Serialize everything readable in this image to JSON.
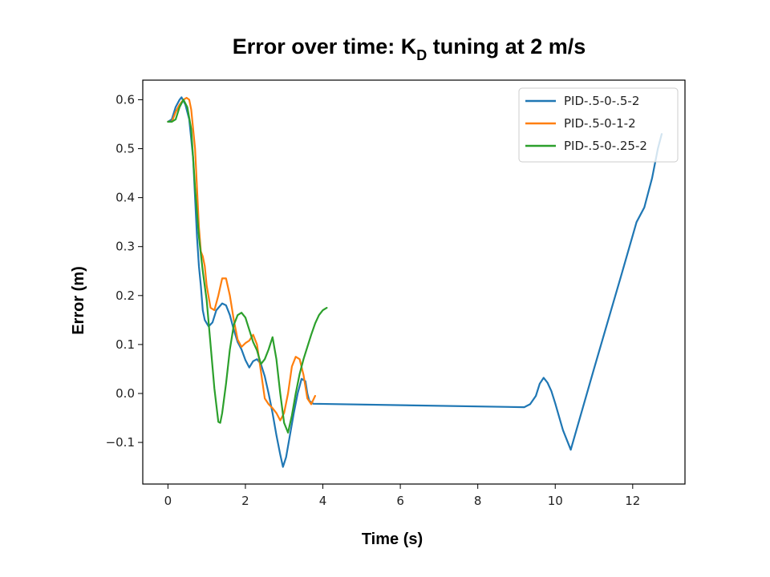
{
  "chart_data": {
    "type": "line",
    "title": {
      "prefix": "Error over time: K",
      "subscript": "D",
      "suffix": " tuning at 2 m/s"
    },
    "xlabel": "Time (s)",
    "ylabel": "Error (m)",
    "xlim": [
      -0.65,
      13.35
    ],
    "ylim": [
      -0.185,
      0.64
    ],
    "xticks": [
      0,
      2,
      4,
      6,
      8,
      10,
      12
    ],
    "yticks": [
      -0.1,
      0.0,
      0.1,
      0.2,
      0.3,
      0.4,
      0.5,
      0.6
    ],
    "ytick_labels": [
      "−0.1",
      "0.0",
      "0.1",
      "0.2",
      "0.3",
      "0.4",
      "0.5",
      "0.6"
    ],
    "xtick_labels": [
      "0",
      "2",
      "4",
      "6",
      "8",
      "10",
      "12"
    ],
    "grid": false,
    "legend_position": "top-right",
    "series": [
      {
        "name": "PID-.5-0-.5-2",
        "color": "#1f77b4",
        "points": [
          [
            0.0,
            0.555
          ],
          [
            0.1,
            0.56
          ],
          [
            0.2,
            0.585
          ],
          [
            0.3,
            0.6
          ],
          [
            0.35,
            0.605
          ],
          [
            0.45,
            0.59
          ],
          [
            0.55,
            0.56
          ],
          [
            0.6,
            0.52
          ],
          [
            0.65,
            0.48
          ],
          [
            0.7,
            0.4
          ],
          [
            0.75,
            0.32
          ],
          [
            0.8,
            0.26
          ],
          [
            0.85,
            0.22
          ],
          [
            0.9,
            0.17
          ],
          [
            0.95,
            0.15
          ],
          [
            1.05,
            0.137
          ],
          [
            1.15,
            0.145
          ],
          [
            1.25,
            0.17
          ],
          [
            1.4,
            0.184
          ],
          [
            1.5,
            0.18
          ],
          [
            1.6,
            0.16
          ],
          [
            1.7,
            0.13
          ],
          [
            1.8,
            0.105
          ],
          [
            1.9,
            0.09
          ],
          [
            2.0,
            0.068
          ],
          [
            2.1,
            0.053
          ],
          [
            2.2,
            0.066
          ],
          [
            2.3,
            0.07
          ],
          [
            2.4,
            0.06
          ],
          [
            2.5,
            0.035
          ],
          [
            2.6,
            0.0
          ],
          [
            2.7,
            -0.04
          ],
          [
            2.8,
            -0.085
          ],
          [
            2.9,
            -0.125
          ],
          [
            2.97,
            -0.15
          ],
          [
            3.05,
            -0.13
          ],
          [
            3.15,
            -0.085
          ],
          [
            3.25,
            -0.04
          ],
          [
            3.35,
            0.0
          ],
          [
            3.45,
            0.03
          ],
          [
            3.55,
            0.025
          ],
          [
            3.6,
            0.0
          ],
          [
            3.65,
            -0.015
          ],
          [
            3.75,
            -0.021
          ],
          [
            9.2,
            -0.028
          ],
          [
            9.35,
            -0.022
          ],
          [
            9.5,
            -0.005
          ],
          [
            9.6,
            0.02
          ],
          [
            9.7,
            0.032
          ],
          [
            9.8,
            0.022
          ],
          [
            9.9,
            0.005
          ],
          [
            10.0,
            -0.02
          ],
          [
            10.2,
            -0.075
          ],
          [
            10.4,
            -0.115
          ],
          [
            11.0,
            0.05
          ],
          [
            11.7,
            0.24
          ],
          [
            12.1,
            0.35
          ],
          [
            12.3,
            0.38
          ],
          [
            12.5,
            0.44
          ],
          [
            12.65,
            0.5
          ],
          [
            12.75,
            0.53
          ]
        ]
      },
      {
        "name": "PID-.5-0-1-2",
        "color": "#ff7f0e",
        "points": [
          [
            0.0,
            0.555
          ],
          [
            0.1,
            0.555
          ],
          [
            0.2,
            0.575
          ],
          [
            0.3,
            0.59
          ],
          [
            0.4,
            0.6
          ],
          [
            0.48,
            0.604
          ],
          [
            0.55,
            0.6
          ],
          [
            0.6,
            0.58
          ],
          [
            0.7,
            0.5
          ],
          [
            0.75,
            0.42
          ],
          [
            0.8,
            0.34
          ],
          [
            0.85,
            0.29
          ],
          [
            0.9,
            0.28
          ],
          [
            0.95,
            0.26
          ],
          [
            1.0,
            0.22
          ],
          [
            1.1,
            0.175
          ],
          [
            1.2,
            0.17
          ],
          [
            1.3,
            0.2
          ],
          [
            1.4,
            0.235
          ],
          [
            1.5,
            0.235
          ],
          [
            1.6,
            0.2
          ],
          [
            1.7,
            0.15
          ],
          [
            1.8,
            0.11
          ],
          [
            1.9,
            0.095
          ],
          [
            2.0,
            0.103
          ],
          [
            2.1,
            0.108
          ],
          [
            2.2,
            0.12
          ],
          [
            2.3,
            0.1
          ],
          [
            2.4,
            0.045
          ],
          [
            2.5,
            -0.01
          ],
          [
            2.6,
            -0.022
          ],
          [
            2.7,
            -0.03
          ],
          [
            2.8,
            -0.04
          ],
          [
            2.9,
            -0.055
          ],
          [
            3.0,
            -0.04
          ],
          [
            3.1,
            0.0
          ],
          [
            3.2,
            0.055
          ],
          [
            3.3,
            0.075
          ],
          [
            3.4,
            0.07
          ],
          [
            3.5,
            0.038
          ],
          [
            3.6,
            -0.01
          ],
          [
            3.7,
            -0.022
          ],
          [
            3.8,
            -0.005
          ]
        ]
      },
      {
        "name": "PID-.5-0-.25-2",
        "color": "#2ca02c",
        "points": [
          [
            0.0,
            0.555
          ],
          [
            0.1,
            0.555
          ],
          [
            0.2,
            0.56
          ],
          [
            0.3,
            0.585
          ],
          [
            0.4,
            0.6
          ],
          [
            0.5,
            0.585
          ],
          [
            0.6,
            0.54
          ],
          [
            0.7,
            0.42
          ],
          [
            0.8,
            0.32
          ],
          [
            0.9,
            0.25
          ],
          [
            1.0,
            0.19
          ],
          [
            1.1,
            0.1
          ],
          [
            1.2,
            0.01
          ],
          [
            1.3,
            -0.058
          ],
          [
            1.35,
            -0.06
          ],
          [
            1.4,
            -0.04
          ],
          [
            1.5,
            0.02
          ],
          [
            1.6,
            0.09
          ],
          [
            1.7,
            0.14
          ],
          [
            1.8,
            0.16
          ],
          [
            1.9,
            0.165
          ],
          [
            2.0,
            0.155
          ],
          [
            2.1,
            0.13
          ],
          [
            2.2,
            0.105
          ],
          [
            2.3,
            0.088
          ],
          [
            2.4,
            0.06
          ],
          [
            2.5,
            0.07
          ],
          [
            2.6,
            0.09
          ],
          [
            2.7,
            0.115
          ],
          [
            2.8,
            0.07
          ],
          [
            2.9,
            0.0
          ],
          [
            3.0,
            -0.06
          ],
          [
            3.1,
            -0.08
          ],
          [
            3.2,
            -0.045
          ],
          [
            3.3,
            0.0
          ],
          [
            3.4,
            0.04
          ],
          [
            3.5,
            0.07
          ],
          [
            3.6,
            0.095
          ],
          [
            3.7,
            0.12
          ],
          [
            3.8,
            0.143
          ],
          [
            3.9,
            0.16
          ],
          [
            4.0,
            0.17
          ],
          [
            4.1,
            0.175
          ]
        ]
      }
    ]
  }
}
